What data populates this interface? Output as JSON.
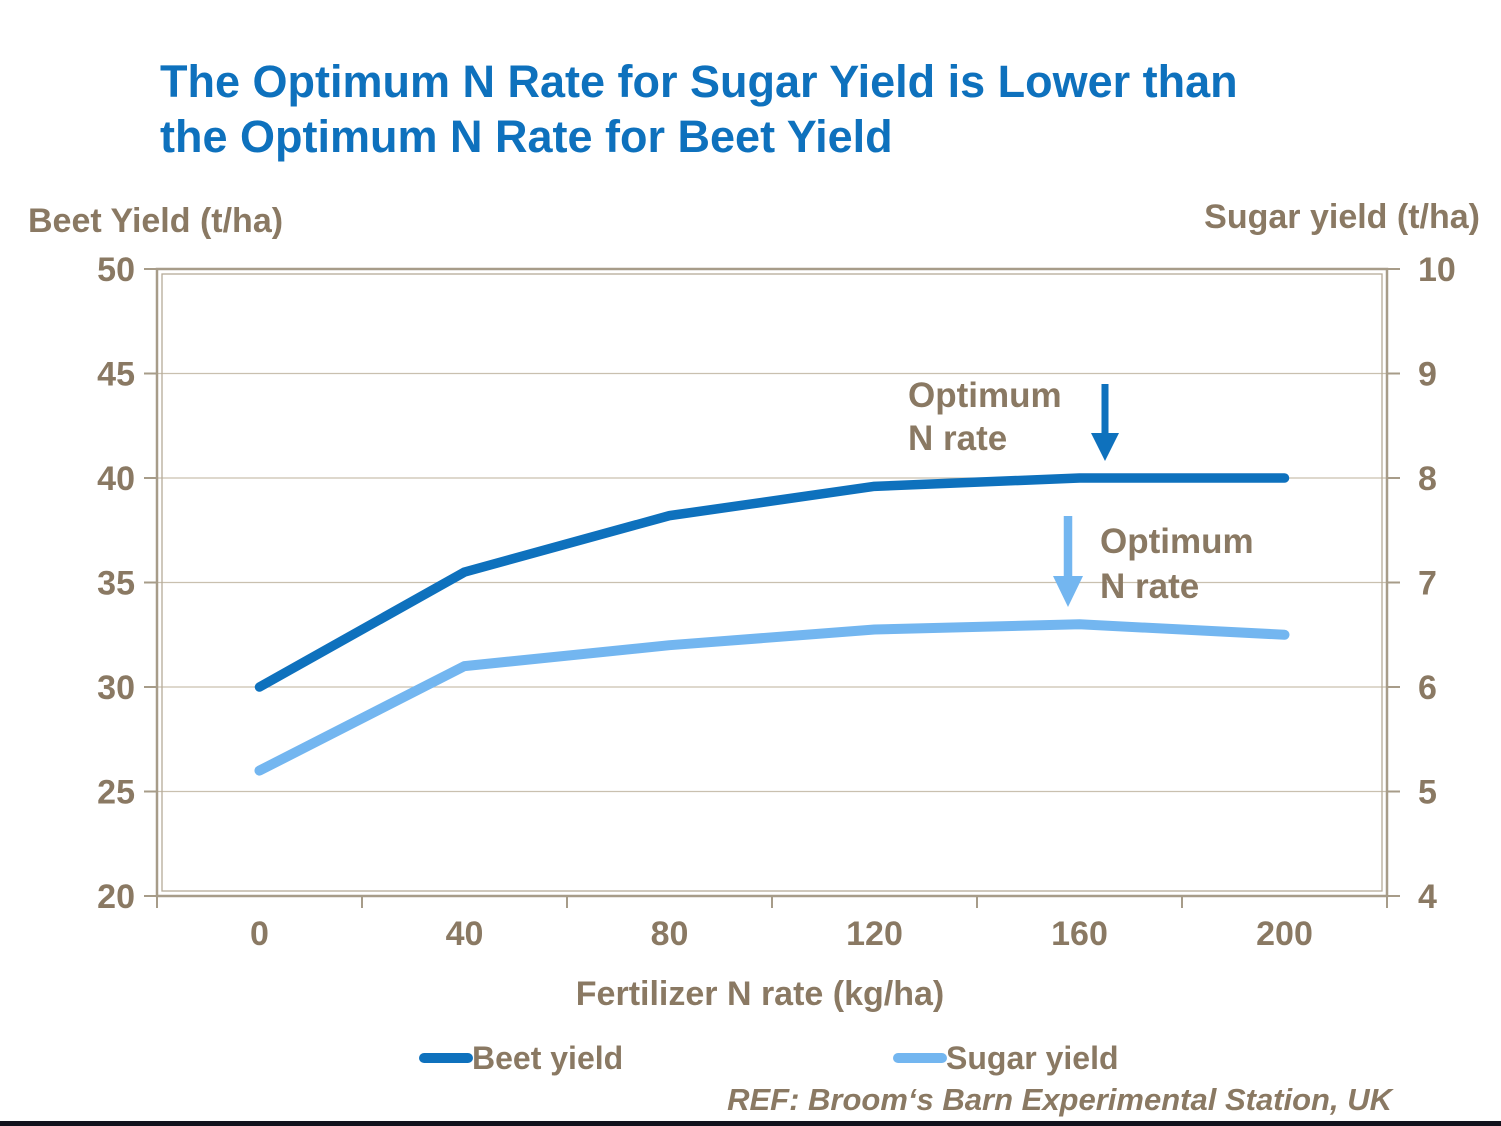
{
  "title": {
    "line1": "The Optimum N Rate for Sugar Yield is Lower than",
    "line2": "the Optimum N Rate for Beet Yield"
  },
  "left_axis": {
    "title": "Beet Yield (t/ha)",
    "ticks": [
      "50",
      "45",
      "40",
      "35",
      "30",
      "25",
      "20"
    ]
  },
  "right_axis": {
    "title": "Sugar yield (t/ha)",
    "ticks": [
      "10",
      "9",
      "8",
      "7",
      "6",
      "5",
      "4"
    ]
  },
  "x_axis": {
    "title": "Fertilizer N rate (kg/ha)",
    "labels": [
      "0",
      "40",
      "80",
      "120",
      "160",
      "200"
    ]
  },
  "annotations": {
    "beet_optimum": {
      "line1": "Optimum",
      "line2": "N rate"
    },
    "sugar_optimum": {
      "line1": "Optimum",
      "line2": "N rate"
    }
  },
  "legend": [
    {
      "label": "Beet yield",
      "color": "#0E71BD"
    },
    {
      "label": "Sugar yield",
      "color": "#73B6F0"
    }
  ],
  "reference": "REF: Broom‘s Barn Experimental Station, UK",
  "colors": {
    "title_blue": "#0E71BD",
    "beet_line": "#0E71BD",
    "sugar_line": "#73B6F0",
    "text_brown": "#8A7963",
    "frame": "#A79C89",
    "frame_light": "#B5AA97",
    "gridline": "#C9C0AF",
    "bottom_bar": "#12121C",
    "background": "#FFFFFF"
  },
  "chart_data": {
    "type": "line",
    "x": [
      0,
      40,
      80,
      120,
      160,
      200
    ],
    "series": [
      {
        "name": "Beet yield",
        "axis": "left",
        "color": "#0E71BD",
        "values": [
          30,
          35.5,
          38.2,
          39.6,
          40,
          40
        ]
      },
      {
        "name": "Sugar yield",
        "axis": "right",
        "color": "#73B6F0",
        "values": [
          5.2,
          6.2,
          6.4,
          6.55,
          6.6,
          6.5
        ]
      }
    ],
    "title": "The Optimum N Rate for Sugar Yield is Lower than the Optimum N Rate for Beet Yield",
    "xlabel": "Fertilizer N rate (kg/ha)",
    "left_ylabel": "Beet Yield (t/ha)",
    "left_ylim": [
      20,
      50
    ],
    "right_ylabel": "Sugar yield (t/ha)",
    "right_ylim": [
      4,
      10
    ],
    "grid": true,
    "legend_position": "bottom",
    "annotations": [
      {
        "text": "Optimum N rate",
        "target": "Beet yield",
        "at_x": 165,
        "arrow_color": "#0E71BD"
      },
      {
        "text": "Optimum N rate",
        "target": "Sugar yield",
        "at_x": 158,
        "arrow_color": "#73B6F0"
      }
    ]
  }
}
